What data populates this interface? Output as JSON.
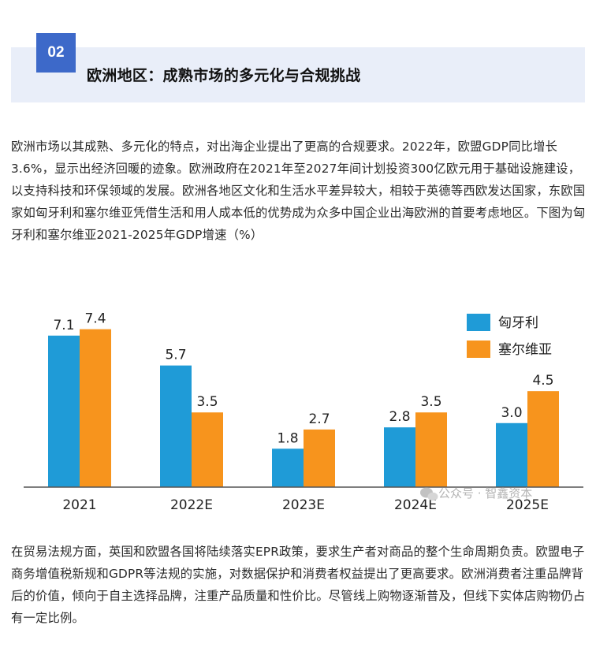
{
  "section": {
    "number": "02",
    "title": "欧洲地区：成熟市场的多元化与合规挑战"
  },
  "paragraph1": "欧洲市场以其成熟、多元化的特点，对出海企业提出了更高的合规要求。2022年，欧盟GDP同比增长3.6%，显示出经济回暖的迹象。欧洲政府在2021年至2027年间计划投资300亿欧元用于基础设施建设，以支持科技和环保领域的发展。欧洲各地区文化和生活水平差异较大，相较于英德等西欧发达国家，东欧国家如匈牙利和塞尔维亚凭借生活和用人成本低的优势成为众多中国企业出海欧洲的首要考虑地区。下图为匈牙利和塞尔维亚2021-2025年GDP增速（%）",
  "paragraph2": "在贸易法规方面，英国和欧盟各国将陆续落实EPR政策，要求生产者对商品的整个生命周期负责。欧盟电子商务增值税新规和GDPR等法规的实施，对数据保护和消费者权益提出了更高要求。欧洲消费者注重品牌背后的价值，倾向于自主选择品牌，注重产品质量和性价比。尽管线上购物逐渐普及，但线下实体店购物仍占有一定比例。",
  "watermark": "公众号 · 智鑫资本",
  "chart_data": {
    "type": "bar",
    "categories": [
      "2021",
      "2022E",
      "2023E",
      "2024E",
      "2025E"
    ],
    "series": [
      {
        "name": "匈牙利",
        "values": [
          7.1,
          5.7,
          1.8,
          2.8,
          3.0
        ],
        "labels": [
          "7.1",
          "5.7",
          "1.8",
          "2.8",
          "3.0"
        ],
        "color": "#1f9bd7"
      },
      {
        "name": "塞尔维亚",
        "values": [
          7.4,
          3.5,
          2.7,
          3.5,
          4.5
        ],
        "labels": [
          "7.4",
          "3.5",
          "2.7",
          "3.5",
          "4.5"
        ],
        "color": "#f7941d"
      }
    ],
    "ylim": [
      0,
      8
    ],
    "legend_position": "top-right",
    "grid": false,
    "axis_color": "#555555"
  }
}
